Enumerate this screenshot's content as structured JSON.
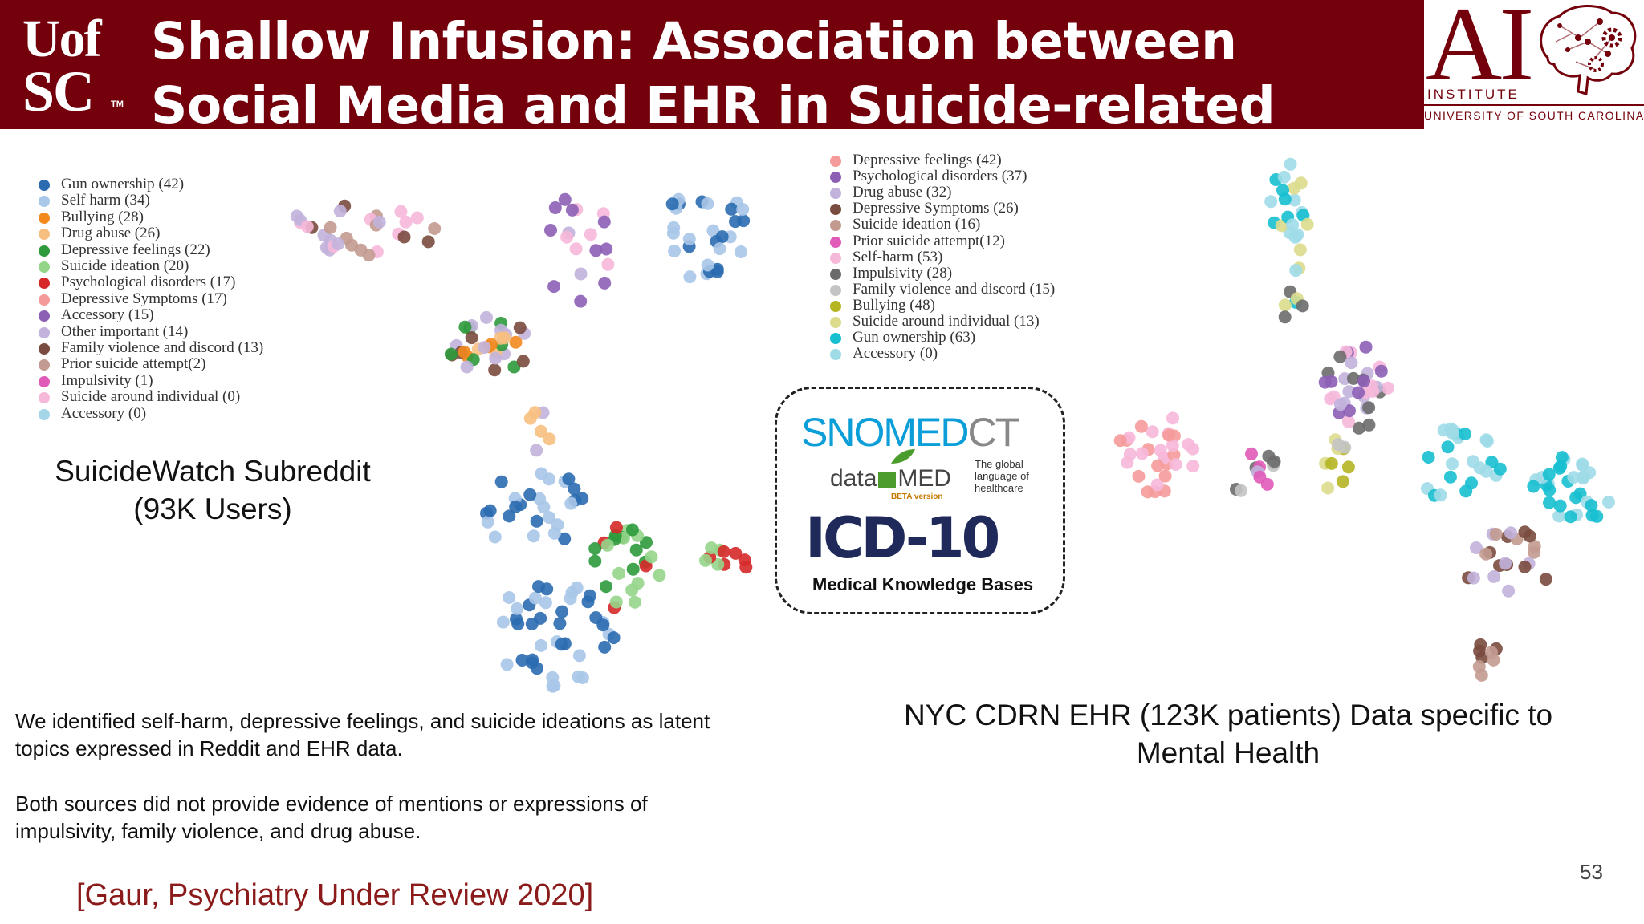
{
  "header": {
    "title": "Shallow Infusion: Association between Social Media and EHR in Suicide-related Communications",
    "logo_uofsc_line1": "Uof",
    "logo_uofsc_line2": "SC",
    "logo_uofsc_tm": "TM",
    "ai_logo_letters": "AI",
    "ai_logo_institute": "INSTITUTE",
    "ai_logo_university": "UNIVERSITY OF SOUTH CAROLINA"
  },
  "colors": {
    "header_bg": "#73000a",
    "citation": "#8b1a1a",
    "snomed_blue": "#0b9ed8",
    "icd_navy": "#1f2a5a"
  },
  "left_legend": [
    {
      "label": "Gun ownership (42)",
      "color": "#2b6cb0"
    },
    {
      "label": "Self harm (34)",
      "color": "#a9c7e8"
    },
    {
      "label": "Bullying (28)",
      "color": "#f28a1e"
    },
    {
      "label": "Drug abuse (26)",
      "color": "#f7bf7f"
    },
    {
      "label": "Depressive feelings (22)",
      "color": "#2e9a3c"
    },
    {
      "label": "Suicide ideation (20)",
      "color": "#95d58a"
    },
    {
      "label": "Psychological disorders (17)",
      "color": "#d62828"
    },
    {
      "label": "Depressive Symptoms (17)",
      "color": "#f59a9a"
    },
    {
      "label": "Accessory (15)",
      "color": "#8c5fb5"
    },
    {
      "label": "Other important (14)",
      "color": "#c2b3dc"
    },
    {
      "label": "Family violence and discord (13)",
      "color": "#7a4b3f"
    },
    {
      "label": "Prior suicide attempt(2)",
      "color": "#c29a8f"
    },
    {
      "label": "Impulsivity (1)",
      "color": "#e05ab8"
    },
    {
      "label": "Suicide around individual (0)",
      "color": "#f6b8d9"
    },
    {
      "label": "Accessory (0)",
      "color": "#a3d6e6"
    }
  ],
  "right_legend": [
    {
      "label": "Depressive feelings (42)",
      "color": "#f59a9a"
    },
    {
      "label": "Psychological disorders (37)",
      "color": "#8c5fb5"
    },
    {
      "label": "Drug abuse (32)",
      "color": "#c2b3dc"
    },
    {
      "label": "Depressive Symptoms (26)",
      "color": "#7a4b3f"
    },
    {
      "label": "Suicide ideation (16)",
      "color": "#c29a8f"
    },
    {
      "label": "Prior suicide attempt(12)",
      "color": "#e05ab8"
    },
    {
      "label": "Self-harm (53)",
      "color": "#f6b8d9"
    },
    {
      "label": "Impulsivity (28)",
      "color": "#6b6b6b"
    },
    {
      "label": "Family violence and discord (15)",
      "color": "#c4c4c4"
    },
    {
      "label": "Bullying (48)",
      "color": "#b5b522"
    },
    {
      "label": "Suicide around individual (13)",
      "color": "#dcdc8c"
    },
    {
      "label": "Gun ownership (63)",
      "color": "#17bfd0"
    },
    {
      "label": "Accessory (0)",
      "color": "#9fdce8"
    }
  ],
  "left_caption": "SuicideWatch Subreddit (93K Users)",
  "right_caption": "NYC CDRN EHR (123K patients) Data specific to Mental Health",
  "knowledge_base": {
    "snomed_part1": "SNOMED",
    "snomed_part2": "CT",
    "snomed_tagline": "The global language of healthcare",
    "datamed_left": "data",
    "datamed_right": "MED",
    "datamed_beta": "BETA version",
    "icd": "ICD-10",
    "label": "Medical Knowledge Bases"
  },
  "body_text_1": "We identified self-harm, depressive feelings, and suicide ideations as latent topics expressed in Reddit and EHR data.",
  "body_text_2": "Both sources did not provide evidence of mentions or expressions of impulsivity, family violence, and drug abuse.",
  "citation": "[Gaur, Psychiatry Under Review 2020]",
  "page_number": "53"
}
